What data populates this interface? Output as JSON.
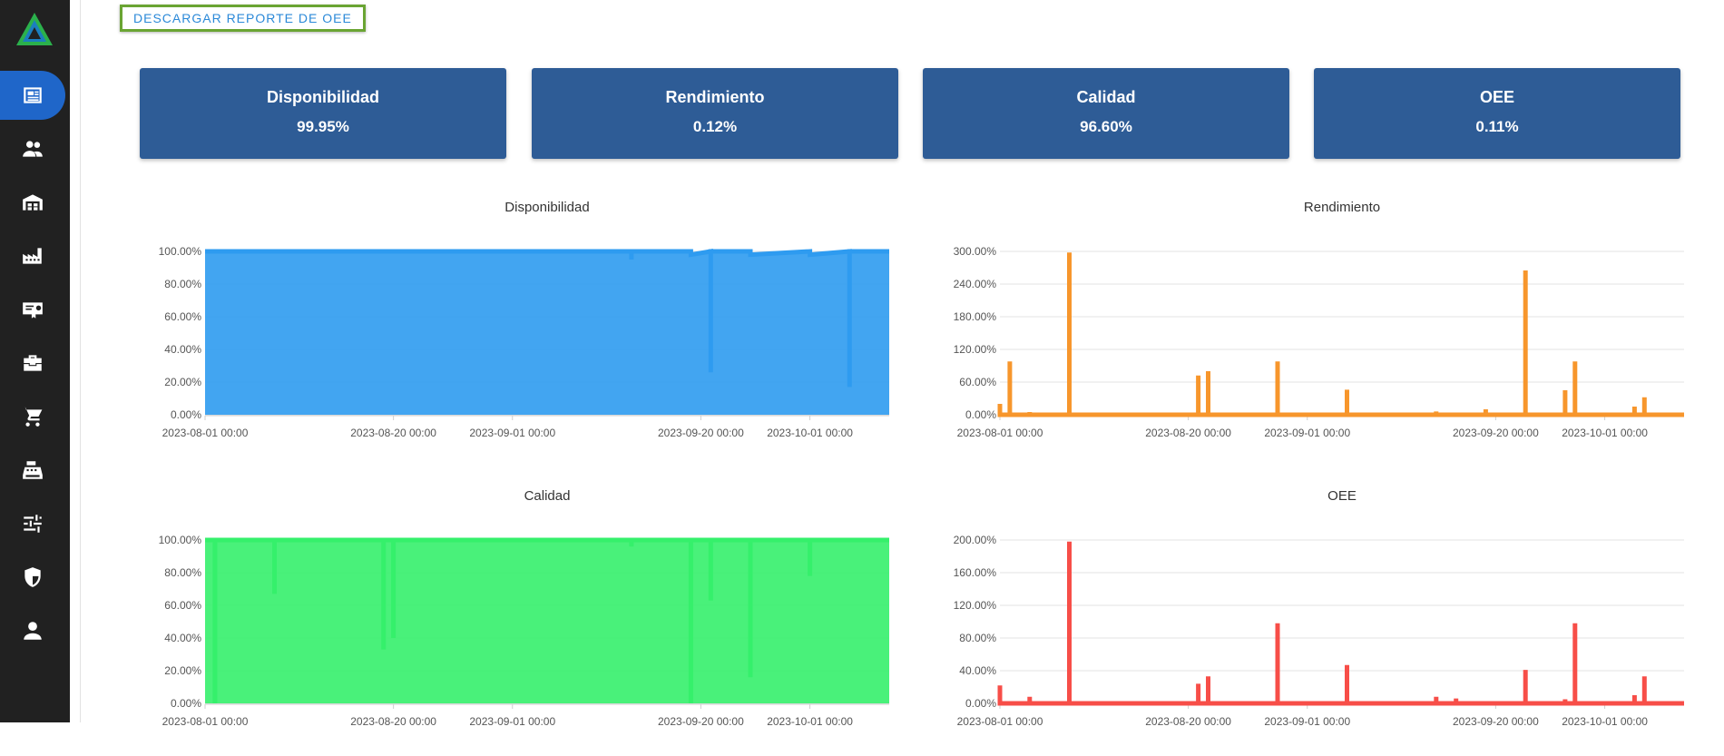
{
  "sidebar": {
    "items": [
      {
        "icon": "newspaper-icon",
        "active": true
      },
      {
        "icon": "users-icon",
        "active": false
      },
      {
        "icon": "warehouse-icon",
        "active": false
      },
      {
        "icon": "factory-icon",
        "active": false
      },
      {
        "icon": "certificate-icon",
        "active": false
      },
      {
        "icon": "toolbox-icon",
        "active": false
      },
      {
        "icon": "cart-icon",
        "active": false
      },
      {
        "icon": "cash-register-icon",
        "active": false
      },
      {
        "icon": "sliders-icon",
        "active": false
      },
      {
        "icon": "shield-icon",
        "active": false
      },
      {
        "icon": "user-icon",
        "active": false
      }
    ]
  },
  "toolbar": {
    "download_label": "DESCARGAR REPORTE DE OEE"
  },
  "kpis": [
    {
      "label": "Disponibilidad",
      "value": "99.95%"
    },
    {
      "label": "Rendimiento",
      "value": "0.12%"
    },
    {
      "label": "Calidad",
      "value": "96.60%"
    },
    {
      "label": "OEE",
      "value": "0.11%"
    }
  ],
  "colors": {
    "kpi_bg": "#2e5c96",
    "active_nav": "#1f66c9",
    "download_border": "#6aa433"
  },
  "chart_data": [
    {
      "type": "area",
      "title": "Disponibilidad",
      "color": "#2e9bf0",
      "xlabel": "",
      "ylabel": "",
      "ylim": [
        0,
        100
      ],
      "yticks": [
        "0.00%",
        "20.00%",
        "40.00%",
        "60.00%",
        "80.00%",
        "100.00%"
      ],
      "xlim": [
        "2023-08-01",
        "2023-10-09"
      ],
      "xticks": [
        "2023-08-01 00:00",
        "2023-08-20 00:00",
        "2023-09-01 00:00",
        "2023-09-20 00:00",
        "2023-10-01 00:00"
      ],
      "grid": true,
      "x": [
        "2023-08-01",
        "2023-09-13",
        "2023-09-13",
        "2023-09-13",
        "2023-09-19",
        "2023-09-19",
        "2023-09-21",
        "2023-09-21",
        "2023-09-21",
        "2023-09-25",
        "2023-09-25",
        "2023-10-01",
        "2023-10-01",
        "2023-10-05",
        "2023-10-05",
        "2023-10-05",
        "2023-10-09"
      ],
      "y": [
        100,
        100,
        95,
        100,
        100,
        98,
        100,
        26,
        100,
        100,
        98,
        100,
        98,
        100,
        17,
        100,
        100
      ]
    },
    {
      "type": "area",
      "title": "Rendimiento",
      "color": "#f7962c",
      "xlabel": "",
      "ylabel": "",
      "ylim": [
        0,
        300
      ],
      "yticks": [
        "0.00%",
        "60.00%",
        "120.00%",
        "180.00%",
        "240.00%",
        "300.00%"
      ],
      "xlim": [
        "2023-08-01",
        "2023-10-09"
      ],
      "xticks": [
        "2023-08-01 00:00",
        "2023-08-20 00:00",
        "2023-09-01 00:00",
        "2023-09-20 00:00",
        "2023-10-01 00:00"
      ],
      "grid": true,
      "x": [
        "2023-08-01",
        "2023-08-01",
        "2023-08-01",
        "2023-08-02",
        "2023-08-02",
        "2023-08-02",
        "2023-08-04",
        "2023-08-04",
        "2023-08-04",
        "2023-08-08",
        "2023-08-08",
        "2023-08-08",
        "2023-08-21",
        "2023-08-21",
        "2023-08-21",
        "2023-08-22",
        "2023-08-22",
        "2023-08-22",
        "2023-08-29",
        "2023-08-29",
        "2023-08-29",
        "2023-09-05",
        "2023-09-05",
        "2023-09-05",
        "2023-09-14",
        "2023-09-14",
        "2023-09-14",
        "2023-09-16",
        "2023-09-16",
        "2023-09-16",
        "2023-09-19",
        "2023-09-19",
        "2023-09-19",
        "2023-09-23",
        "2023-09-23",
        "2023-09-23",
        "2023-09-27",
        "2023-09-27",
        "2023-09-27",
        "2023-09-28",
        "2023-09-28",
        "2023-09-28",
        "2023-10-04",
        "2023-10-04",
        "2023-10-04",
        "2023-10-05",
        "2023-10-05",
        "2023-10-05",
        "2023-10-09"
      ],
      "y": [
        0,
        20,
        0,
        0,
        98,
        0,
        0,
        5,
        0,
        0,
        298,
        0,
        0,
        72,
        0,
        0,
        80,
        0,
        0,
        98,
        0,
        0,
        46,
        0,
        0,
        6,
        0,
        0,
        4,
        0,
        0,
        10,
        0,
        0,
        265,
        0,
        0,
        45,
        0,
        0,
        98,
        0,
        0,
        15,
        0,
        0,
        32,
        0,
        0
      ]
    },
    {
      "type": "area",
      "title": "Calidad",
      "color": "#35f06b",
      "xlabel": "",
      "ylabel": "",
      "ylim": [
        0,
        100
      ],
      "yticks": [
        "0.00%",
        "20.00%",
        "40.00%",
        "60.00%",
        "80.00%",
        "100.00%"
      ],
      "xlim": [
        "2023-08-01",
        "2023-10-09"
      ],
      "xticks": [
        "2023-08-01 00:00",
        "2023-08-20 00:00",
        "2023-09-01 00:00",
        "2023-09-20 00:00",
        "2023-10-01 00:00"
      ],
      "grid": true,
      "x": [
        "2023-08-01",
        "2023-08-02",
        "2023-08-02",
        "2023-08-02",
        "2023-08-08",
        "2023-08-08",
        "2023-08-08",
        "2023-08-19",
        "2023-08-19",
        "2023-08-19",
        "2023-08-20",
        "2023-08-20",
        "2023-08-20",
        "2023-09-13",
        "2023-09-13",
        "2023-09-13",
        "2023-09-19",
        "2023-09-19",
        "2023-09-19",
        "2023-09-21",
        "2023-09-21",
        "2023-09-21",
        "2023-09-25",
        "2023-09-25",
        "2023-09-25",
        "2023-10-01",
        "2023-10-01",
        "2023-10-01",
        "2023-10-09"
      ],
      "y": [
        100,
        100,
        0,
        100,
        100,
        67,
        100,
        100,
        33,
        100,
        100,
        40,
        100,
        100,
        96,
        100,
        100,
        0,
        100,
        100,
        63,
        100,
        100,
        16,
        100,
        100,
        78,
        100,
        100
      ]
    },
    {
      "type": "area",
      "title": "OEE",
      "color": "#f74e48",
      "xlabel": "",
      "ylabel": "",
      "ylim": [
        0,
        200
      ],
      "yticks": [
        "0.00%",
        "40.00%",
        "80.00%",
        "120.00%",
        "160.00%",
        "200.00%"
      ],
      "xlim": [
        "2023-08-01",
        "2023-10-09"
      ],
      "xticks": [
        "2023-08-01 00:00",
        "2023-08-20 00:00",
        "2023-09-01 00:00",
        "2023-09-20 00:00",
        "2023-10-01 00:00"
      ],
      "grid": true,
      "x": [
        "2023-08-01",
        "2023-08-01",
        "2023-08-01",
        "2023-08-04",
        "2023-08-04",
        "2023-08-04",
        "2023-08-08",
        "2023-08-08",
        "2023-08-08",
        "2023-08-21",
        "2023-08-21",
        "2023-08-21",
        "2023-08-22",
        "2023-08-22",
        "2023-08-22",
        "2023-08-29",
        "2023-08-29",
        "2023-08-29",
        "2023-09-05",
        "2023-09-05",
        "2023-09-05",
        "2023-09-14",
        "2023-09-14",
        "2023-09-14",
        "2023-09-16",
        "2023-09-16",
        "2023-09-16",
        "2023-09-23",
        "2023-09-23",
        "2023-09-23",
        "2023-09-27",
        "2023-09-27",
        "2023-09-27",
        "2023-09-28",
        "2023-09-28",
        "2023-09-28",
        "2023-10-04",
        "2023-10-04",
        "2023-10-04",
        "2023-10-05",
        "2023-10-05",
        "2023-10-05",
        "2023-10-09"
      ],
      "y": [
        0,
        22,
        0,
        0,
        8,
        0,
        0,
        198,
        0,
        0,
        24,
        0,
        0,
        33,
        0,
        0,
        98,
        0,
        0,
        47,
        0,
        0,
        8,
        0,
        0,
        6,
        0,
        0,
        41,
        0,
        0,
        5,
        0,
        0,
        98,
        0,
        0,
        10,
        0,
        0,
        33,
        0,
        0
      ]
    }
  ]
}
